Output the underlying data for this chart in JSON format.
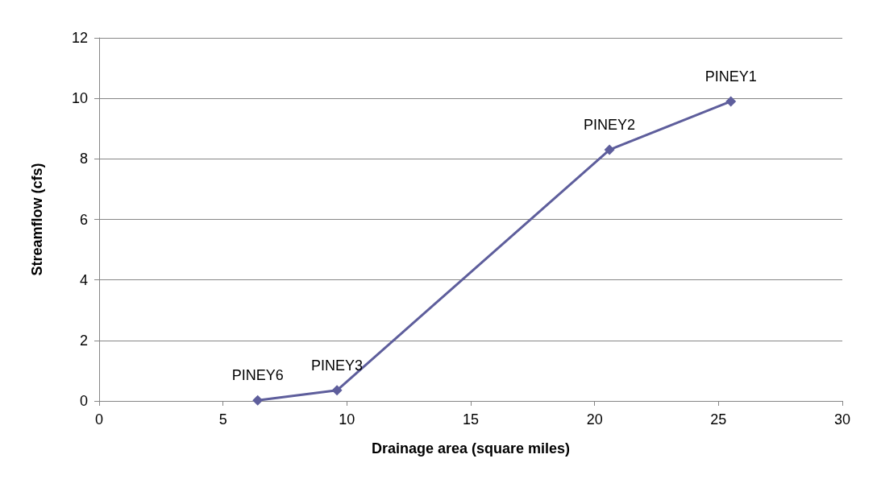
{
  "chart_data": {
    "type": "line",
    "xlabel": "Drainage area (square miles)",
    "ylabel": "Streamflow (cfs)",
    "x": [
      6.4,
      9.6,
      20.6,
      25.5
    ],
    "series": [
      {
        "color": "#5e5e9c",
        "values": [
          0.02,
          0.35,
          8.3,
          9.9
        ]
      }
    ],
    "xlim": [
      0,
      30
    ],
    "xticks": [
      0,
      5,
      10,
      15,
      20,
      25,
      30
    ],
    "ylim": [
      0,
      12
    ],
    "yticks": [
      0,
      2,
      4,
      6,
      8,
      10,
      12
    ],
    "grid": "y",
    "marker": "diamond",
    "line_style": "solid",
    "annotations": [
      {
        "text": "PINEY6",
        "x": 6.4,
        "y": 0.02
      },
      {
        "text": "PINEY3",
        "x": 9.6,
        "y": 0.35
      },
      {
        "text": "PINEY2",
        "x": 20.6,
        "y": 8.3
      },
      {
        "text": "PINEY1",
        "x": 25.5,
        "y": 9.9
      }
    ]
  }
}
